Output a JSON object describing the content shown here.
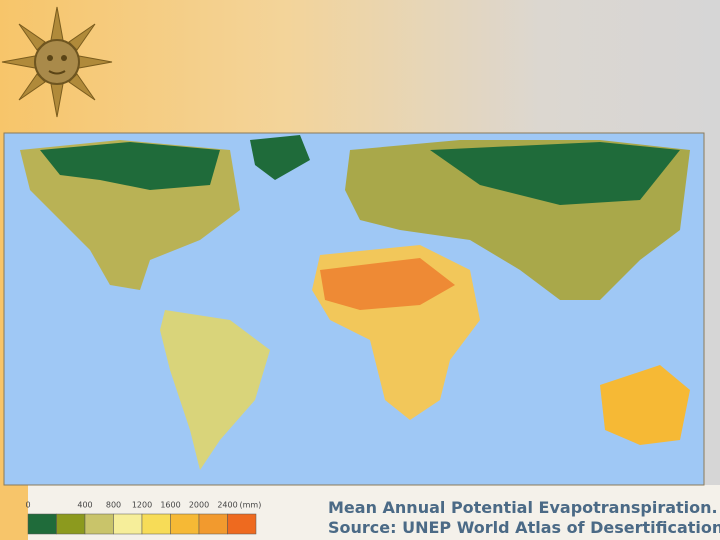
{
  "slide": {
    "caption": [
      "Mean Annual Potential Evapotranspiration.",
      "Source: UNEP World Atlas of Desertification"
    ],
    "legend": {
      "ticks": [
        0,
        400,
        800,
        1200,
        1600,
        2000,
        2400
      ],
      "unit": "(mm)",
      "colors": [
        "#1f6b3a",
        "#8c9a1e",
        "#c9c46a",
        "#f6ee9a",
        "#f7dc57",
        "#f6b935",
        "#f29a2e",
        "#ee6a1f"
      ]
    }
  }
}
